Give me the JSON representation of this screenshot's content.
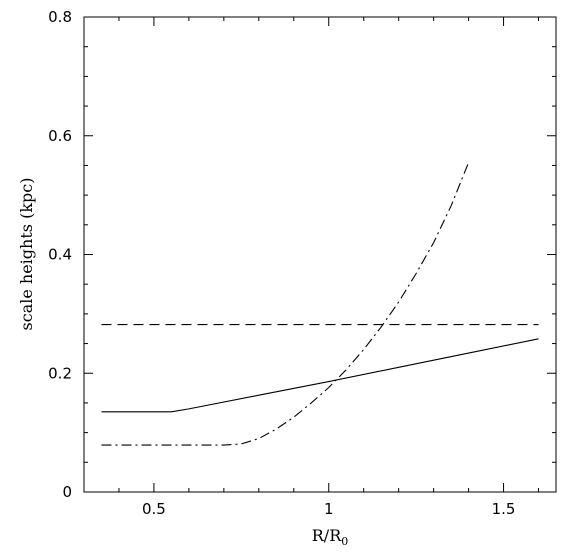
{
  "chart_data": {
    "type": "line",
    "xlabel_main": "R/R",
    "xlabel_sub": "0",
    "ylabel": "scale heights (kpc)",
    "xlim": [
      0.3,
      1.65
    ],
    "ylim": [
      0,
      0.8
    ],
    "xticks": [
      {
        "value": 0.5,
        "label": "0.5"
      },
      {
        "value": 1.0,
        "label": "1"
      },
      {
        "value": 1.5,
        "label": "1.5"
      }
    ],
    "yticks": [
      {
        "value": 0.0,
        "label": "0"
      },
      {
        "value": 0.2,
        "label": "0.2"
      },
      {
        "value": 0.4,
        "label": "0.4"
      },
      {
        "value": 0.6,
        "label": "0.6"
      },
      {
        "value": 0.8,
        "label": "0.8"
      }
    ],
    "grid": false,
    "series": [
      {
        "style": "solid",
        "x": [
          0.35,
          0.55,
          0.6,
          0.8,
          1.0,
          1.2,
          1.4,
          1.6
        ],
        "y": [
          0.135,
          0.135,
          0.14,
          0.163,
          0.186,
          0.21,
          0.234,
          0.258
        ]
      },
      {
        "style": "dashed",
        "x": [
          0.35,
          1.6
        ],
        "y": [
          0.282,
          0.282
        ]
      },
      {
        "style": "dashdot",
        "x": [
          0.35,
          0.5,
          0.6,
          0.7,
          0.75,
          0.8,
          0.85,
          0.9,
          0.95,
          1.0,
          1.05,
          1.1,
          1.15,
          1.2,
          1.25,
          1.3,
          1.35,
          1.4
        ],
        "y": [
          0.079,
          0.079,
          0.079,
          0.079,
          0.081,
          0.09,
          0.106,
          0.126,
          0.15,
          0.176,
          0.206,
          0.24,
          0.278,
          0.32,
          0.368,
          0.42,
          0.482,
          0.555
        ]
      }
    ]
  }
}
